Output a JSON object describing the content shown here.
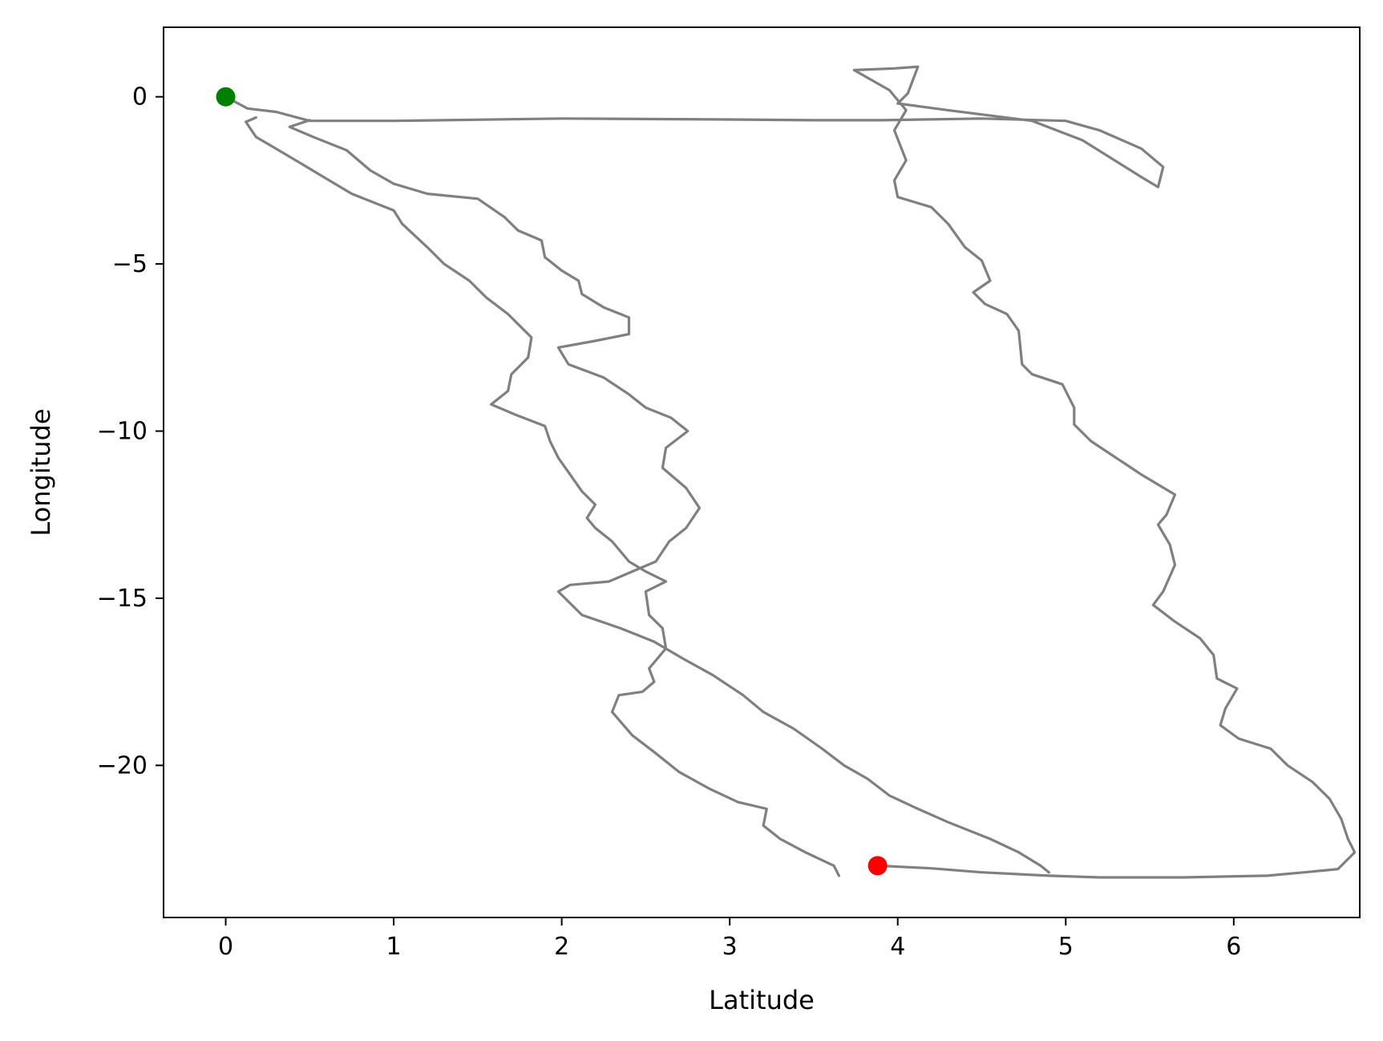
{
  "chart_data": {
    "type": "line",
    "title": "",
    "xlabel": "Latitude",
    "ylabel": "Longitude",
    "xlim": [
      -0.37,
      6.75
    ],
    "ylim": [
      -24.55,
      2.08
    ],
    "grid": false,
    "xticks": [
      0,
      1,
      2,
      3,
      4,
      5,
      6
    ],
    "yticks": [
      0,
      -5,
      -10,
      -15,
      -20
    ],
    "series": [
      {
        "color": "#808080",
        "points": [
          [
            0.0,
            0.0
          ],
          [
            0.13,
            -0.35
          ],
          [
            0.3,
            -0.45
          ],
          [
            0.5,
            -0.72
          ],
          [
            1.0,
            -0.72
          ],
          [
            2.0,
            -0.65
          ],
          [
            3.0,
            -0.68
          ],
          [
            3.5,
            -0.7
          ],
          [
            3.9,
            -0.7
          ],
          [
            4.5,
            -0.65
          ],
          [
            5.0,
            -0.72
          ],
          [
            5.2,
            -1.0
          ],
          [
            5.45,
            -1.55
          ],
          [
            5.58,
            -2.1
          ],
          [
            5.55,
            -2.7
          ],
          [
            5.45,
            -2.4
          ],
          [
            5.1,
            -1.3
          ],
          [
            4.8,
            -0.72
          ],
          [
            4.3,
            -0.4
          ],
          [
            4.0,
            -0.2
          ],
          [
            4.06,
            0.1
          ],
          [
            4.12,
            0.9
          ],
          [
            3.98,
            0.85
          ],
          [
            3.74,
            0.8
          ],
          [
            3.95,
            0.2
          ],
          [
            4.05,
            -0.4
          ],
          [
            3.98,
            -1.0
          ],
          [
            4.05,
            -1.9
          ],
          [
            3.98,
            -2.5
          ],
          [
            4.0,
            -3.0
          ],
          [
            4.2,
            -3.3
          ],
          [
            4.3,
            -3.8
          ],
          [
            4.4,
            -4.5
          ],
          [
            4.5,
            -4.9
          ],
          [
            4.55,
            -5.5
          ],
          [
            4.45,
            -5.85
          ],
          [
            4.52,
            -6.2
          ],
          [
            4.65,
            -6.5
          ],
          [
            4.72,
            -7.0
          ],
          [
            4.74,
            -8.0
          ],
          [
            4.8,
            -8.3
          ],
          [
            4.98,
            -8.6
          ],
          [
            5.05,
            -9.3
          ],
          [
            5.05,
            -9.8
          ],
          [
            5.15,
            -10.3
          ],
          [
            5.3,
            -10.8
          ],
          [
            5.45,
            -11.3
          ],
          [
            5.65,
            -11.9
          ],
          [
            5.6,
            -12.5
          ],
          [
            5.55,
            -12.8
          ],
          [
            5.62,
            -13.4
          ],
          [
            5.65,
            -14.0
          ],
          [
            5.58,
            -14.8
          ],
          [
            5.52,
            -15.2
          ],
          [
            5.65,
            -15.7
          ],
          [
            5.8,
            -16.2
          ],
          [
            5.88,
            -16.7
          ],
          [
            5.9,
            -17.4
          ],
          [
            6.02,
            -17.7
          ],
          [
            5.95,
            -18.3
          ],
          [
            5.92,
            -18.8
          ],
          [
            6.03,
            -19.2
          ],
          [
            6.22,
            -19.5
          ],
          [
            6.32,
            -20.0
          ],
          [
            6.47,
            -20.5
          ],
          [
            6.57,
            -21.0
          ],
          [
            6.64,
            -21.6
          ],
          [
            6.68,
            -22.2
          ],
          [
            6.72,
            -22.6
          ],
          [
            6.62,
            -23.1
          ],
          [
            6.42,
            -23.2
          ],
          [
            6.2,
            -23.3
          ],
          [
            5.7,
            -23.35
          ],
          [
            5.2,
            -23.35
          ],
          [
            4.9,
            -23.3
          ],
          [
            4.5,
            -23.2
          ],
          [
            4.2,
            -23.08
          ],
          [
            3.88,
            -23.0
          ]
        ]
      },
      {
        "color": "#808080",
        "points": [
          [
            0.18,
            -0.62
          ],
          [
            0.12,
            -0.75
          ],
          [
            0.18,
            -1.2
          ],
          [
            0.35,
            -1.7
          ],
          [
            0.55,
            -2.3
          ],
          [
            0.75,
            -2.9
          ],
          [
            1.0,
            -3.4
          ],
          [
            1.05,
            -3.8
          ],
          [
            1.2,
            -4.5
          ],
          [
            1.3,
            -5.0
          ],
          [
            1.45,
            -5.5
          ],
          [
            1.55,
            -6.0
          ],
          [
            1.68,
            -6.5
          ],
          [
            1.82,
            -7.2
          ],
          [
            1.8,
            -7.8
          ],
          [
            1.7,
            -8.3
          ],
          [
            1.68,
            -8.8
          ],
          [
            1.58,
            -9.2
          ],
          [
            1.72,
            -9.5
          ],
          [
            1.9,
            -9.85
          ],
          [
            1.93,
            -10.3
          ],
          [
            1.98,
            -10.8
          ],
          [
            2.05,
            -11.3
          ],
          [
            2.12,
            -11.8
          ],
          [
            2.2,
            -12.2
          ],
          [
            2.15,
            -12.6
          ],
          [
            2.2,
            -12.9
          ],
          [
            2.3,
            -13.3
          ],
          [
            2.4,
            -13.9
          ],
          [
            2.5,
            -14.2
          ],
          [
            2.62,
            -14.5
          ],
          [
            2.5,
            -14.8
          ],
          [
            2.52,
            -15.5
          ],
          [
            2.6,
            -15.9
          ],
          [
            2.62,
            -16.5
          ],
          [
            2.52,
            -17.1
          ],
          [
            2.55,
            -17.5
          ],
          [
            2.48,
            -17.8
          ],
          [
            2.34,
            -17.9
          ],
          [
            2.3,
            -18.4
          ],
          [
            2.42,
            -19.1
          ],
          [
            2.55,
            -19.6
          ],
          [
            2.7,
            -20.2
          ],
          [
            2.88,
            -20.7
          ],
          [
            3.05,
            -21.1
          ],
          [
            3.22,
            -21.3
          ],
          [
            3.2,
            -21.8
          ],
          [
            3.3,
            -22.2
          ],
          [
            3.45,
            -22.6
          ],
          [
            3.62,
            -23.0
          ],
          [
            3.65,
            -23.3
          ]
        ]
      },
      {
        "color": "#808080",
        "points": [
          [
            0.5,
            -0.7
          ],
          [
            0.38,
            -0.9
          ],
          [
            0.52,
            -1.2
          ],
          [
            0.72,
            -1.6
          ],
          [
            0.86,
            -2.2
          ],
          [
            1.0,
            -2.6
          ],
          [
            1.2,
            -2.9
          ],
          [
            1.5,
            -3.05
          ],
          [
            1.66,
            -3.6
          ],
          [
            1.74,
            -4.0
          ],
          [
            1.88,
            -4.3
          ],
          [
            1.9,
            -4.8
          ],
          [
            2.0,
            -5.2
          ],
          [
            2.1,
            -5.5
          ],
          [
            2.12,
            -5.9
          ],
          [
            2.25,
            -6.3
          ],
          [
            2.4,
            -6.6
          ],
          [
            2.4,
            -7.1
          ],
          [
            2.2,
            -7.3
          ],
          [
            1.98,
            -7.5
          ],
          [
            2.04,
            -8.0
          ],
          [
            2.25,
            -8.4
          ],
          [
            2.4,
            -8.9
          ],
          [
            2.5,
            -9.3
          ],
          [
            2.65,
            -9.6
          ],
          [
            2.75,
            -10.0
          ],
          [
            2.62,
            -10.5
          ],
          [
            2.6,
            -11.1
          ],
          [
            2.74,
            -11.7
          ],
          [
            2.82,
            -12.3
          ],
          [
            2.74,
            -12.9
          ],
          [
            2.64,
            -13.3
          ],
          [
            2.56,
            -13.9
          ],
          [
            2.42,
            -14.2
          ],
          [
            2.28,
            -14.5
          ],
          [
            2.05,
            -14.6
          ],
          [
            1.98,
            -14.8
          ],
          [
            2.12,
            -15.5
          ],
          [
            2.35,
            -15.9
          ],
          [
            2.55,
            -16.3
          ],
          [
            2.72,
            -16.8
          ],
          [
            2.9,
            -17.3
          ],
          [
            3.08,
            -17.9
          ],
          [
            3.2,
            -18.4
          ],
          [
            3.38,
            -18.9
          ],
          [
            3.55,
            -19.5
          ],
          [
            3.68,
            -20.0
          ],
          [
            3.82,
            -20.4
          ],
          [
            3.95,
            -20.9
          ],
          [
            4.12,
            -21.3
          ],
          [
            4.3,
            -21.7
          ],
          [
            4.55,
            -22.2
          ],
          [
            4.72,
            -22.6
          ],
          [
            4.85,
            -23.0
          ],
          [
            4.9,
            -23.2
          ]
        ]
      }
    ],
    "markers": [
      {
        "label": "start",
        "x": 0.0,
        "y": 0.0,
        "color": "#007f00"
      },
      {
        "label": "end",
        "x": 3.88,
        "y": -23.0,
        "color": "#ff0000"
      }
    ]
  }
}
